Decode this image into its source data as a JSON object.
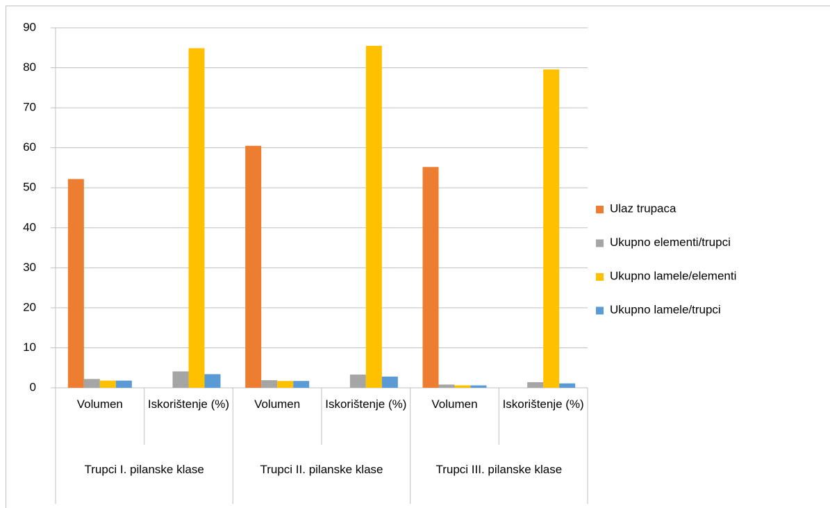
{
  "chart_data": {
    "type": "bar",
    "categories": [
      "Volumen",
      "Iskorištenje (%)",
      "Volumen",
      "Iskorištenje (%)",
      "Volumen",
      "Iskorištenje (%)"
    ],
    "groups": [
      "Trupci I. pilanske klase",
      "Trupci II. pilanske klase",
      "Trupci III. pilanske klase"
    ],
    "series": [
      {
        "name": "Ulaz trupaca",
        "color": "#ed7d31",
        "values": [
          52.2,
          null,
          60.5,
          null,
          55.2,
          null
        ]
      },
      {
        "name": "Ukupno elementi/trupci",
        "color": "#a5a5a5",
        "values": [
          2.2,
          4.1,
          1.9,
          3.3,
          0.8,
          1.4
        ]
      },
      {
        "name": "Ukupno lamele/elementi",
        "color": "#ffc000",
        "values": [
          1.8,
          84.9,
          1.7,
          85.5,
          0.6,
          79.6
        ]
      },
      {
        "name": "Ukupno lamele/trupci",
        "color": "#5b9bd5",
        "values": [
          1.8,
          3.4,
          1.7,
          2.8,
          0.6,
          1.1
        ]
      }
    ],
    "ylim": [
      0,
      90
    ],
    "yticks": [
      0,
      10,
      20,
      30,
      40,
      50,
      60,
      70,
      80,
      90
    ],
    "grid": true,
    "legend": "right"
  }
}
